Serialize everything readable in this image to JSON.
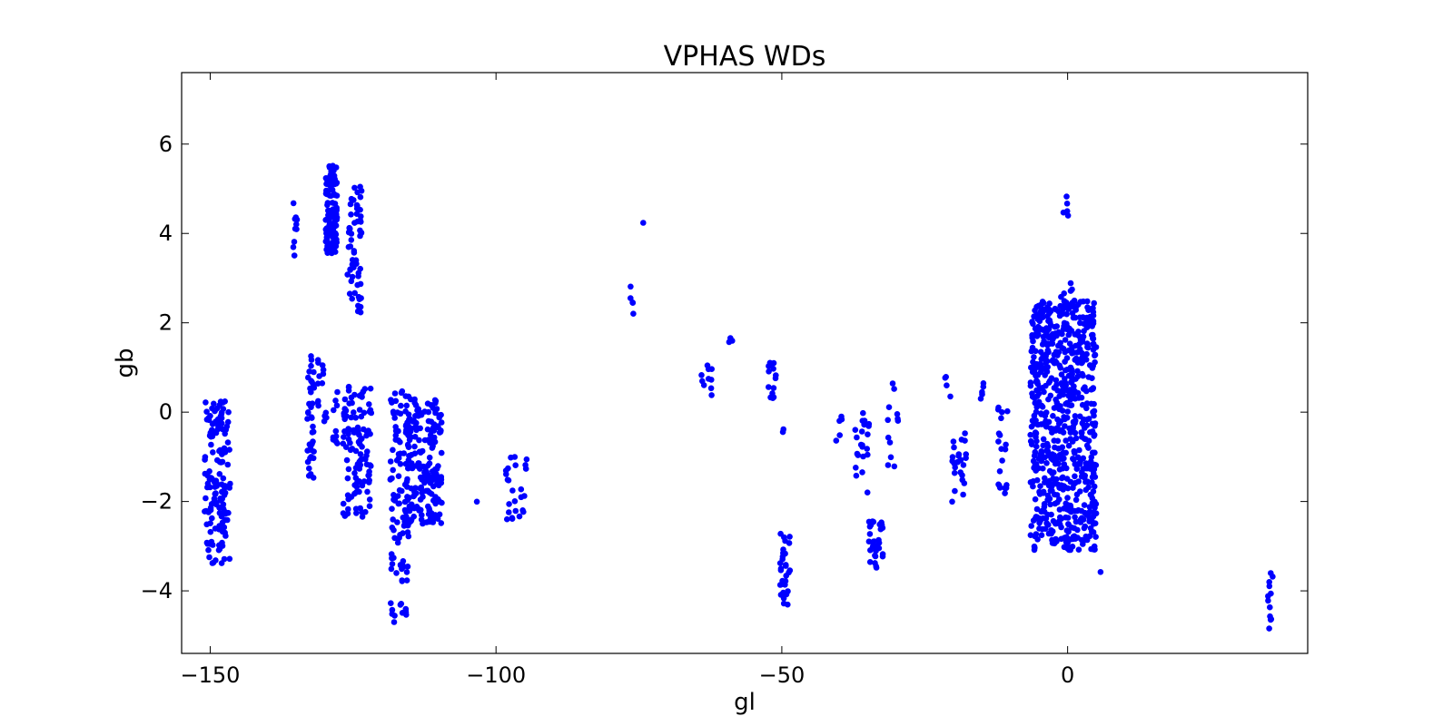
{
  "chart_data": {
    "type": "scatter",
    "title": "VPHAS WDs",
    "xlabel": "gl",
    "ylabel": "gb",
    "xlim": [
      -155,
      42
    ],
    "ylim": [
      -5.4,
      7.6
    ],
    "xticks": [
      -150,
      -100,
      -50,
      0
    ],
    "xtick_labels": [
      "−150",
      "−100",
      "−50",
      "0"
    ],
    "yticks": [
      -4,
      -2,
      0,
      2,
      4,
      6
    ],
    "ytick_labels": [
      "−4",
      "−2",
      "0",
      "2",
      "4",
      "6"
    ],
    "grid": false,
    "marker_color": "#0000ff",
    "clusters": [
      {
        "x": [
          -151,
          -146.5
        ],
        "y": [
          -3.4,
          0.25
        ],
        "n": 150
      },
      {
        "x": [
          -135.5,
          -134.8
        ],
        "y": [
          3.5,
          4.7
        ],
        "n": 10
      },
      {
        "x": [
          -129.8,
          -127.8
        ],
        "y": [
          3.55,
          5.55
        ],
        "n": 110
      },
      {
        "x": [
          -126,
          -123.5
        ],
        "y": [
          2.2,
          5.05
        ],
        "n": 60
      },
      {
        "x": [
          -133,
          -131.8
        ],
        "y": [
          -1.5,
          1.35
        ],
        "n": 40
      },
      {
        "x": [
          -131.2,
          -129.5
        ],
        "y": [
          -0.3,
          1.3
        ],
        "n": 15
      },
      {
        "x": [
          -128.5,
          -127.5
        ],
        "y": [
          -0.7,
          0.6
        ],
        "n": 10
      },
      {
        "x": [
          -126.8,
          -121.8
        ],
        "y": [
          -2.4,
          0.65
        ],
        "n": 110
      },
      {
        "x": [
          -118.5,
          -115.5
        ],
        "y": [
          -4.7,
          -4.2
        ],
        "n": 12
      },
      {
        "x": [
          -118.5,
          -115.2
        ],
        "y": [
          -3.8,
          0.6
        ],
        "n": 90
      },
      {
        "x": [
          -116,
          -109.5
        ],
        "y": [
          -2.5,
          0.3
        ],
        "n": 200
      },
      {
        "x": [
          -103.8,
          -103.2
        ],
        "y": [
          -2.1,
          -2.0
        ],
        "n": 1
      },
      {
        "x": [
          -98.5,
          -94.5
        ],
        "y": [
          -2.4,
          -0.95
        ],
        "n": 25
      },
      {
        "x": [
          -76.5,
          -75.5
        ],
        "y": [
          2.2,
          2.9
        ],
        "n": 5
      },
      {
        "x": [
          -74.3,
          -73.9
        ],
        "y": [
          4.2,
          4.3
        ],
        "n": 1
      },
      {
        "x": [
          -64.5,
          -62.2
        ],
        "y": [
          0.3,
          1.1
        ],
        "n": 10
      },
      {
        "x": [
          -59.5,
          -58.5
        ],
        "y": [
          1.55,
          1.7
        ],
        "n": 3
      },
      {
        "x": [
          -52.5,
          -51.0
        ],
        "y": [
          0.3,
          1.15
        ],
        "n": 14
      },
      {
        "x": [
          -50,
          -49.5
        ],
        "y": [
          -0.45,
          -0.35
        ],
        "n": 2
      },
      {
        "x": [
          -50.3,
          -48.5
        ],
        "y": [
          -4.35,
          -2.7
        ],
        "n": 30
      },
      {
        "x": [
          -40.5,
          -39.5
        ],
        "y": [
          -0.7,
          0.0
        ],
        "n": 5
      },
      {
        "x": [
          -37.5,
          -34.5
        ],
        "y": [
          -1.9,
          0.1
        ],
        "n": 22
      },
      {
        "x": [
          -34.8,
          -32.3
        ],
        "y": [
          -3.5,
          -2.3
        ],
        "n": 30
      },
      {
        "x": [
          -31.5,
          -29.5
        ],
        "y": [
          -1.6,
          0.65
        ],
        "n": 12
      },
      {
        "x": [
          -21.5,
          -20.5
        ],
        "y": [
          0.3,
          0.85
        ],
        "n": 4
      },
      {
        "x": [
          -20.2,
          -17.5
        ],
        "y": [
          -2.25,
          -0.4
        ],
        "n": 25
      },
      {
        "x": [
          -15.5,
          -14.5
        ],
        "y": [
          0.2,
          1.3
        ],
        "n": 5
      },
      {
        "x": [
          -12.3,
          -10.5
        ],
        "y": [
          -1.9,
          0.4
        ],
        "n": 20
      },
      {
        "x": [
          -6.5,
          5.0
        ],
        "y": [
          -3.1,
          2.5
        ],
        "n": 700
      },
      {
        "x": [
          -1.2,
          0.8
        ],
        "y": [
          2.4,
          3.0
        ],
        "n": 6
      },
      {
        "x": [
          -0.9,
          0.1
        ],
        "y": [
          3.9,
          4.85
        ],
        "n": 5
      },
      {
        "x": [
          5.4,
          6.0
        ],
        "y": [
          -3.6,
          -3.55
        ],
        "n": 1
      },
      {
        "x": [
          35.0,
          36.0
        ],
        "y": [
          -4.85,
          -3.6
        ],
        "n": 12
      }
    ]
  }
}
